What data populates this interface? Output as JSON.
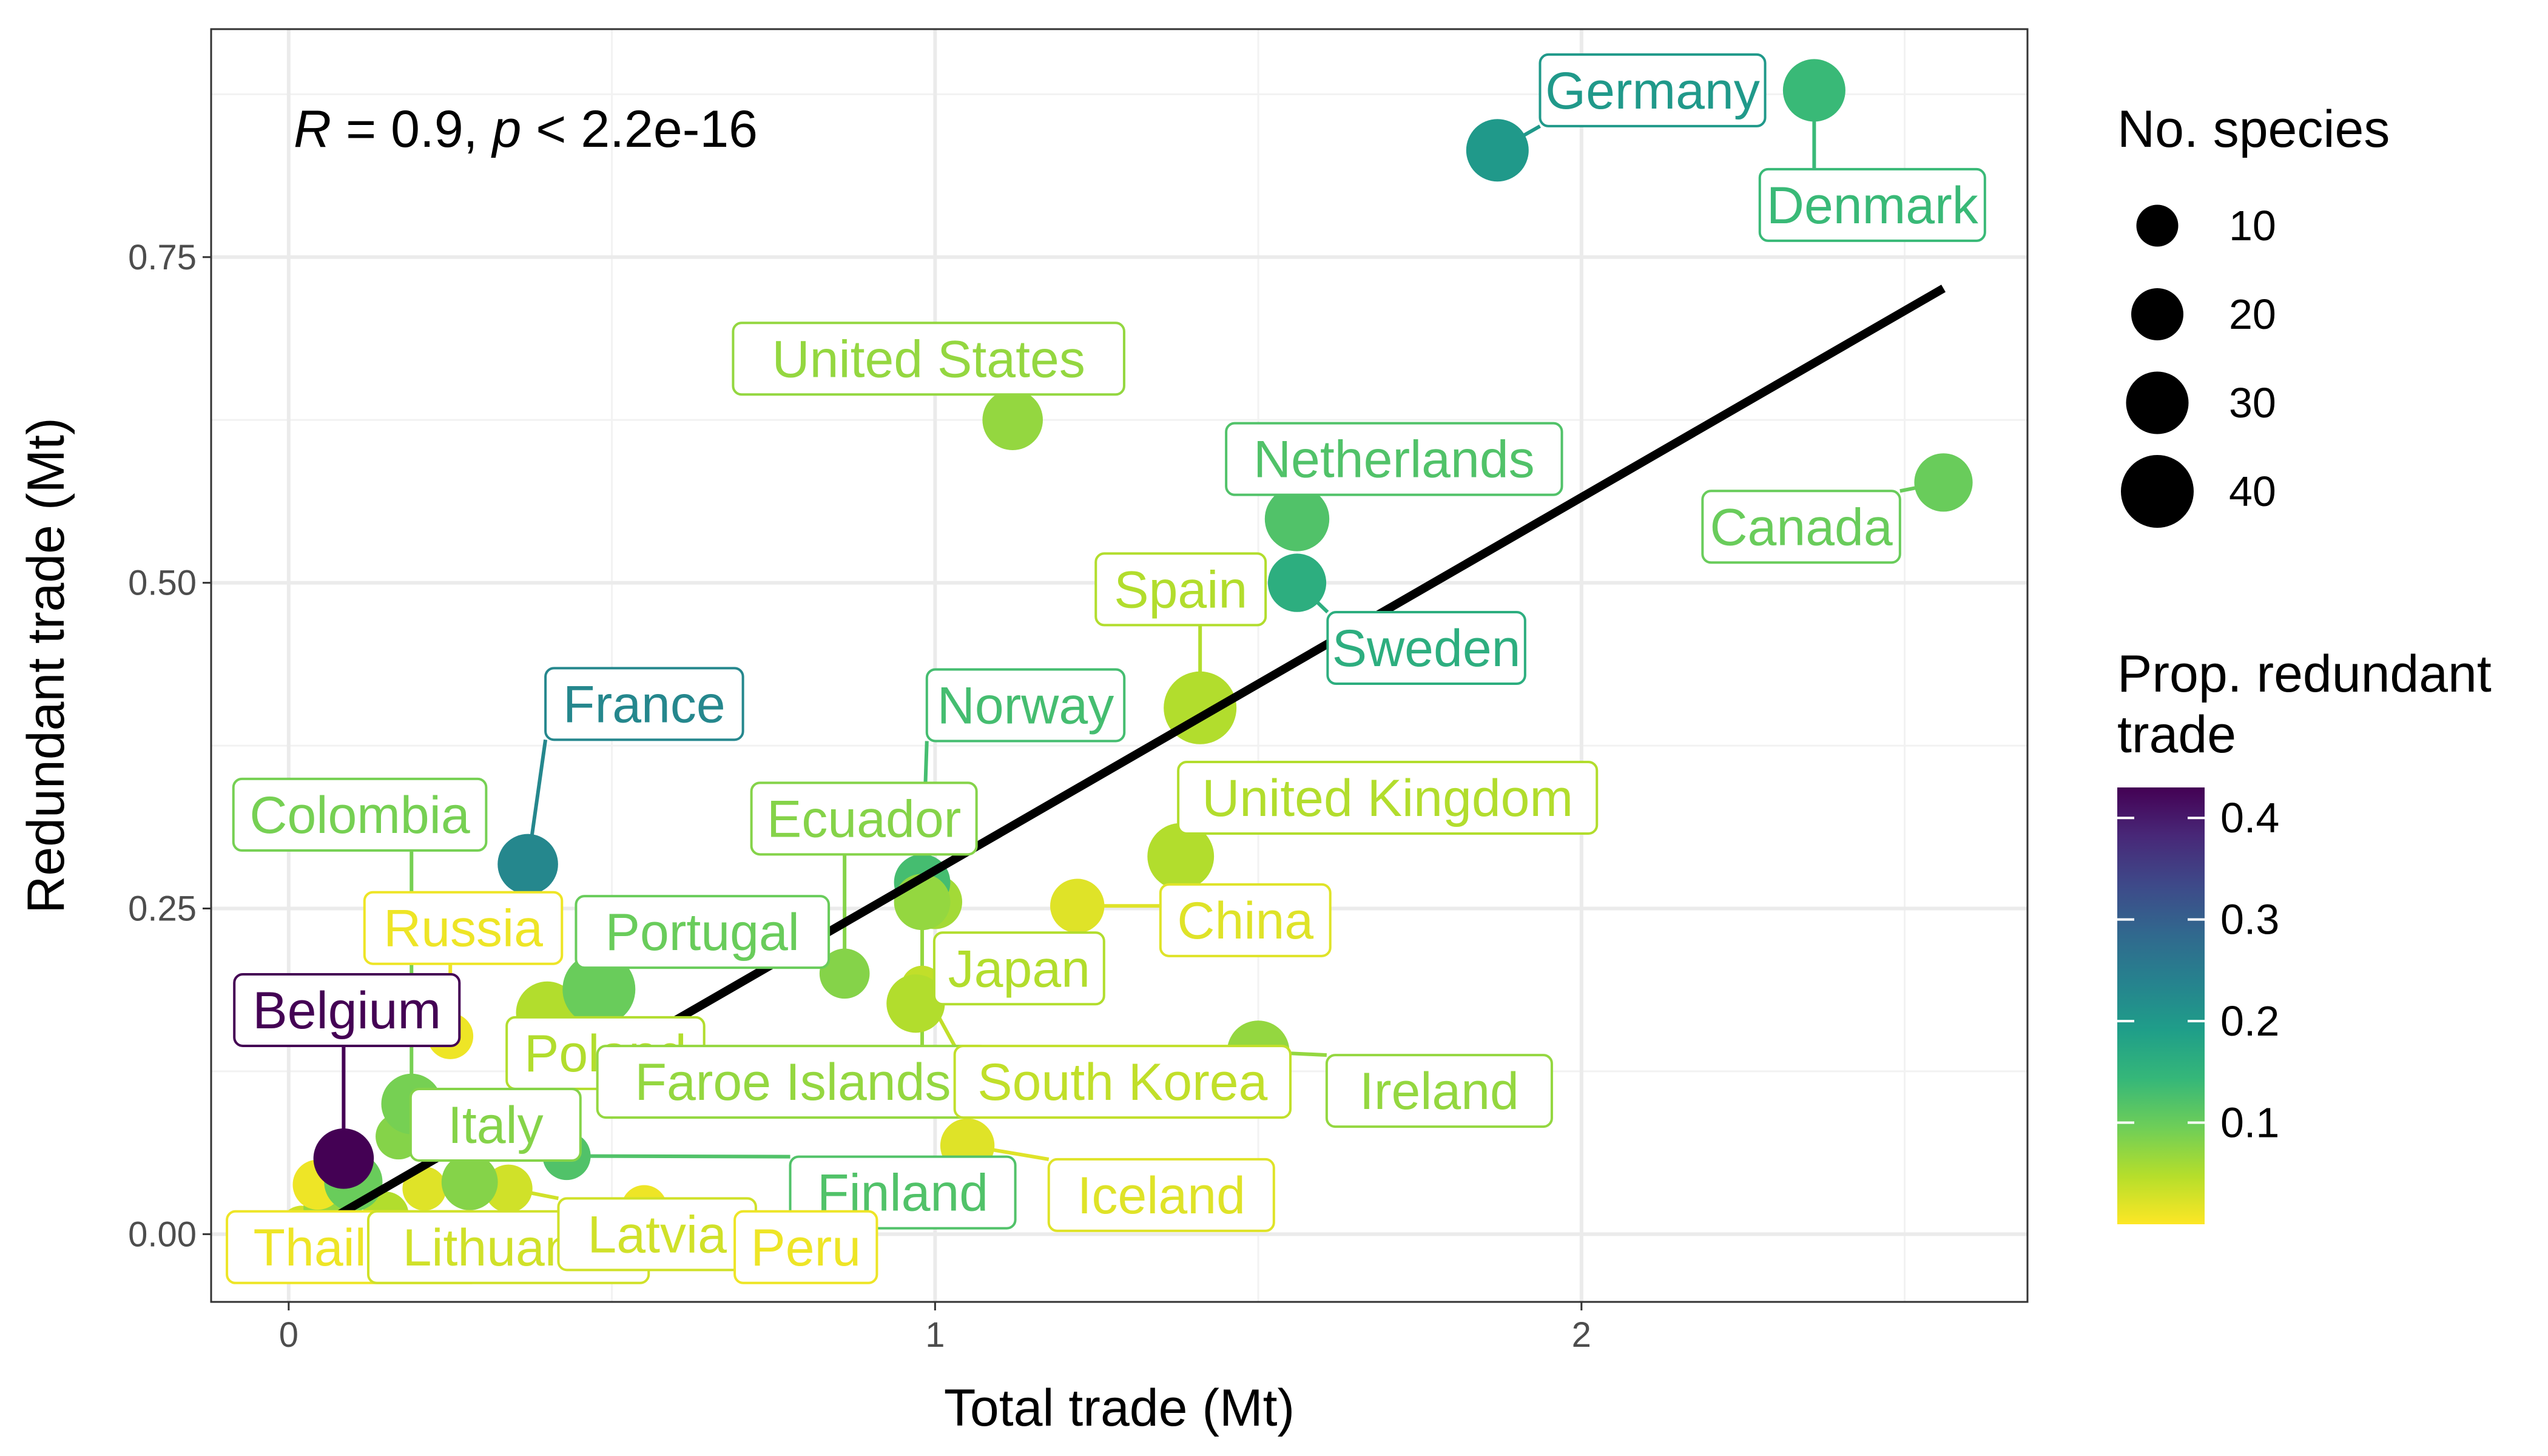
{
  "chart_data": {
    "type": "scatter",
    "xlabel": "Total trade (Mt)",
    "ylabel": "Redundant trade (Mt)",
    "xlim": [
      -0.12,
      2.69
    ],
    "ylim": [
      -0.052,
      0.925
    ],
    "x_ticks": [
      0,
      1,
      2
    ],
    "x_tick_labels": [
      "0",
      "1",
      "2"
    ],
    "y_ticks": [
      0.0,
      0.25,
      0.5,
      0.75
    ],
    "y_tick_labels": [
      "0.00",
      "0.25",
      "0.50",
      "0.75"
    ],
    "grid": true,
    "annotation": {
      "r_symbol": "R",
      "r_text": " = 0.9, ",
      "p_symbol": "p",
      "p_text": " < 2.2e-16"
    },
    "regression_line": {
      "x": [
        0.06,
        2.56
      ],
      "y": [
        0.01,
        0.726
      ],
      "color": "#000000"
    },
    "size_legend": {
      "title": "No. species",
      "placement": "right",
      "entries": [
        {
          "label": "10",
          "value": 10
        },
        {
          "label": "20",
          "value": 20
        },
        {
          "label": "30",
          "value": 30
        },
        {
          "label": "40",
          "value": 40
        }
      ]
    },
    "color_legend": {
      "title_line1": "Prop. redundant",
      "title_line2": "trade",
      "placement": "right",
      "range": [
        0.0,
        0.43
      ],
      "ticks": [
        0.1,
        0.2,
        0.3,
        0.4
      ],
      "tick_labels": [
        "0.1",
        "0.2",
        "0.3",
        "0.4"
      ],
      "colors": [
        "#fde725",
        "#b5de2b",
        "#6ece58",
        "#35b779",
        "#1f9e89",
        "#26828e",
        "#31688e",
        "#3e4989",
        "#482878",
        "#440154"
      ]
    },
    "points": [
      {
        "name": "Germany",
        "label": "Germany",
        "x": 1.87,
        "y": 0.832,
        "size": 30,
        "prop": 0.2,
        "lx": 2.11,
        "ly": 0.878
      },
      {
        "name": "Denmark",
        "label": "Denmark",
        "x": 2.36,
        "y": 0.878,
        "size": 30,
        "prop": 0.14,
        "lx": 2.45,
        "ly": 0.79
      },
      {
        "name": "United States",
        "label": "United States",
        "x": 1.12,
        "y": 0.625,
        "size": 28,
        "prop": 0.07,
        "lx": 0.99,
        "ly": 0.672
      },
      {
        "name": "Netherlands",
        "label": "Netherlands",
        "x": 1.56,
        "y": 0.549,
        "size": 32,
        "prop": 0.12,
        "lx": 1.71,
        "ly": 0.595
      },
      {
        "name": "Canada",
        "label": "Canada",
        "x": 2.56,
        "y": 0.577,
        "size": 26,
        "prop": 0.1,
        "lx": 2.34,
        "ly": 0.543
      },
      {
        "name": "Sweden",
        "label": "Sweden",
        "x": 1.56,
        "y": 0.5,
        "size": 26,
        "prop": 0.16,
        "lx": 1.76,
        "ly": 0.45
      },
      {
        "name": "Spain",
        "label": "Spain",
        "x": 1.41,
        "y": 0.404,
        "size": 40,
        "prop": 0.05,
        "lx": 1.38,
        "ly": 0.495
      },
      {
        "name": "France",
        "label": "France",
        "x": 0.37,
        "y": 0.284,
        "size": 28,
        "prop": 0.23,
        "lx": 0.55,
        "ly": 0.407
      },
      {
        "name": "Norway",
        "label": "Norway",
        "x": 0.98,
        "y": 0.27,
        "size": 24,
        "prop": 0.13,
        "lx": 1.14,
        "ly": 0.406
      },
      {
        "name": "Colombia",
        "label": "Colombia",
        "x": 0.19,
        "y": 0.1,
        "size": 28,
        "prop": 0.09,
        "lx": 0.11,
        "ly": 0.322
      },
      {
        "name": "Ecuador",
        "label": "Ecuador",
        "x": 0.86,
        "y": 0.2,
        "size": 18,
        "prop": 0.08,
        "lx": 0.89,
        "ly": 0.319
      },
      {
        "name": "United Kingdom",
        "label": "United Kingdom",
        "x": 1.38,
        "y": 0.29,
        "size": 34,
        "prop": 0.05,
        "lx": 1.7,
        "ly": 0.335
      },
      {
        "name": "China",
        "label": "China",
        "x": 1.22,
        "y": 0.252,
        "size": 22,
        "prop": 0.02,
        "lx": 1.48,
        "ly": 0.241
      },
      {
        "name": "Russia",
        "label": "Russia",
        "x": 0.25,
        "y": 0.152,
        "size": 14,
        "prop": 0.01,
        "lx": 0.27,
        "ly": 0.235
      },
      {
        "name": "Portugal",
        "label": "Portugal",
        "x": 0.48,
        "y": 0.188,
        "size": 40,
        "prop": 0.1,
        "lx": 0.64,
        "ly": 0.232
      },
      {
        "name": "Japan",
        "label": "Japan",
        "x": 0.97,
        "y": 0.177,
        "size": 26,
        "prop": 0.05,
        "lx": 1.13,
        "ly": 0.204
      },
      {
        "name": "Belgium",
        "label": "Belgium",
        "x": 0.085,
        "y": 0.058,
        "size": 28,
        "prop": 0.43,
        "lx": 0.09,
        "ly": 0.172
      },
      {
        "name": "Poland",
        "label": "Poland",
        "x": 0.4,
        "y": 0.17,
        "size": 30,
        "prop": 0.05,
        "lx": 0.49,
        "ly": 0.139
      },
      {
        "name": "Faroe Islands",
        "label": "Faroe Islands",
        "x": 0.98,
        "y": 0.255,
        "size": 24,
        "prop": 0.07,
        "lx": 0.78,
        "ly": 0.117
      },
      {
        "name": "South Korea",
        "label": "South Korea",
        "x": 0.98,
        "y": 0.19,
        "size": 10,
        "prop": 0.04,
        "lx": 1.29,
        "ly": 0.117
      },
      {
        "name": "Ireland",
        "label": "Ireland",
        "x": 1.5,
        "y": 0.14,
        "size": 30,
        "prop": 0.07,
        "lx": 1.78,
        "ly": 0.11
      },
      {
        "name": "Italy",
        "label": "Italy",
        "x": 0.17,
        "y": 0.075,
        "size": 14,
        "prop": 0.08,
        "lx": 0.32,
        "ly": 0.084
      },
      {
        "name": "Finland",
        "label": "Finland",
        "x": 0.43,
        "y": 0.06,
        "size": 16,
        "prop": 0.12,
        "lx": 0.95,
        "ly": 0.032
      },
      {
        "name": "Iceland",
        "label": "Iceland",
        "x": 1.05,
        "y": 0.068,
        "size": 22,
        "prop": 0.02,
        "lx": 1.35,
        "ly": 0.03
      },
      {
        "name": "Thailand",
        "label": "Thailand",
        "x": 0.045,
        "y": 0.038,
        "size": 18,
        "prop": 0.01,
        "lx": 0.1,
        "ly": -0.01
      },
      {
        "name": "Lithuania",
        "label": "Lithuania",
        "x": 0.27,
        "y": 0.0,
        "size": 10,
        "prop": 0.03,
        "lx": 0.34,
        "ly": -0.01
      },
      {
        "name": "Latvia",
        "label": "Latvia",
        "x": 0.34,
        "y": 0.035,
        "size": 16,
        "prop": 0.03,
        "lx": 0.57,
        "ly": 0.0
      },
      {
        "name": "Peru",
        "label": "Peru",
        "x": 0.55,
        "y": 0.02,
        "size": 14,
        "prop": 0.01,
        "lx": 0.8,
        "ly": -0.01
      },
      {
        "name": "",
        "x": 0.28,
        "y": 0.04,
        "size": 24,
        "prop": 0.08
      },
      {
        "name": "",
        "x": 0.1,
        "y": 0.04,
        "size": 26,
        "prop": 0.1
      },
      {
        "name": "",
        "x": 0.06,
        "y": 0.02,
        "size": 16,
        "prop": 0.07
      },
      {
        "name": "",
        "x": 0.21,
        "y": 0.035,
        "size": 12,
        "prop": 0.02
      },
      {
        "name": "",
        "x": 0.15,
        "y": 0.015,
        "size": 14,
        "prop": 0.05
      },
      {
        "name": "",
        "x": 1.0,
        "y": 0.255,
        "size": 22,
        "prop": 0.06
      },
      {
        "name": "",
        "x": 0.02,
        "y": 0.005,
        "size": 12,
        "prop": 0.03
      },
      {
        "name": "",
        "x": 0.49,
        "y": 0.0,
        "size": 10,
        "prop": 0.02
      }
    ]
  }
}
